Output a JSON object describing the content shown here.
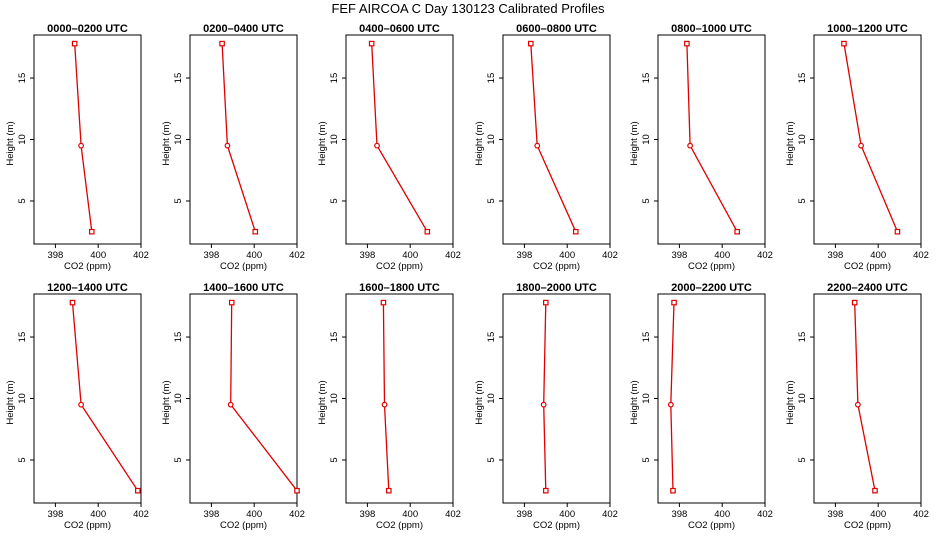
{
  "figure_title": "FEF AIRCOA C  Day 130123  Calibrated Profiles",
  "colors": {
    "series": "#e00000",
    "axis": "#000000",
    "background": "#ffffff"
  },
  "chart_data": [
    {
      "type": "line",
      "title": "0000–0200 UTC",
      "xlabel": "CO2 (ppm)",
      "ylabel": "Height (m)",
      "x": [
        398.9,
        399.2,
        399.7
      ],
      "y": [
        17.8,
        9.5,
        2.5
      ],
      "xlim": [
        397,
        402
      ],
      "ylim": [
        1.5,
        18.5
      ],
      "xticks": [
        "398",
        "400",
        "402"
      ],
      "yticks": [
        "5",
        "10",
        "15"
      ]
    },
    {
      "type": "line",
      "title": "0200–0400 UTC",
      "xlabel": "CO2 (ppm)",
      "ylabel": "Height (m)",
      "x": [
        398.5,
        398.75,
        400.05
      ],
      "y": [
        17.8,
        9.5,
        2.5
      ],
      "xlim": [
        397,
        402
      ],
      "ylim": [
        1.5,
        18.5
      ],
      "xticks": [
        "398",
        "400",
        "402"
      ],
      "yticks": [
        "5",
        "10",
        "15"
      ]
    },
    {
      "type": "line",
      "title": "0400–0600 UTC",
      "xlabel": "CO2 (ppm)",
      "ylabel": "Height (m)",
      "x": [
        398.2,
        398.45,
        400.8
      ],
      "y": [
        17.8,
        9.5,
        2.5
      ],
      "xlim": [
        397,
        402
      ],
      "ylim": [
        1.5,
        18.5
      ],
      "xticks": [
        "398",
        "400",
        "402"
      ],
      "yticks": [
        "5",
        "10",
        "15"
      ]
    },
    {
      "type": "line",
      "title": "0600–0800 UTC",
      "xlabel": "CO2 (ppm)",
      "ylabel": "Height (m)",
      "x": [
        398.3,
        398.6,
        400.4
      ],
      "y": [
        17.8,
        9.5,
        2.5
      ],
      "xlim": [
        397,
        402
      ],
      "ylim": [
        1.5,
        18.5
      ],
      "xticks": [
        "398",
        "400",
        "402"
      ],
      "yticks": [
        "5",
        "10",
        "15"
      ]
    },
    {
      "type": "line",
      "title": "0800–1000 UTC",
      "xlabel": "CO2 (ppm)",
      "ylabel": "Height (m)",
      "x": [
        398.35,
        398.5,
        400.7
      ],
      "y": [
        17.8,
        9.5,
        2.5
      ],
      "xlim": [
        397,
        402
      ],
      "ylim": [
        1.5,
        18.5
      ],
      "xticks": [
        "398",
        "400",
        "402"
      ],
      "yticks": [
        "5",
        "10",
        "15"
      ]
    },
    {
      "type": "line",
      "title": "1000–1200 UTC",
      "xlabel": "CO2 (ppm)",
      "ylabel": "Height (m)",
      "x": [
        398.4,
        399.2,
        400.9
      ],
      "y": [
        17.8,
        9.5,
        2.5
      ],
      "xlim": [
        397,
        402
      ],
      "ylim": [
        1.5,
        18.5
      ],
      "xticks": [
        "398",
        "400",
        "402"
      ],
      "yticks": [
        "5",
        "10",
        "15"
      ]
    },
    {
      "type": "line",
      "title": "1200–1400 UTC",
      "xlabel": "CO2 (ppm)",
      "ylabel": "Height (m)",
      "x": [
        398.8,
        399.2,
        401.85
      ],
      "y": [
        17.8,
        9.5,
        2.5
      ],
      "xlim": [
        397,
        402
      ],
      "ylim": [
        1.5,
        18.5
      ],
      "xticks": [
        "398",
        "400",
        "402"
      ],
      "yticks": [
        "5",
        "10",
        "15"
      ]
    },
    {
      "type": "line",
      "title": "1400–1600 UTC",
      "xlabel": "CO2 (ppm)",
      "ylabel": "Height (m)",
      "x": [
        398.95,
        398.9,
        402.0
      ],
      "y": [
        17.8,
        9.5,
        2.5
      ],
      "xlim": [
        397,
        402
      ],
      "ylim": [
        1.5,
        18.5
      ],
      "xticks": [
        "398",
        "400",
        "402"
      ],
      "yticks": [
        "5",
        "10",
        "15"
      ]
    },
    {
      "type": "line",
      "title": "1600–1800 UTC",
      "xlabel": "CO2 (ppm)",
      "ylabel": "Height (m)",
      "x": [
        398.75,
        398.8,
        399.0
      ],
      "y": [
        17.8,
        9.5,
        2.5
      ],
      "xlim": [
        397,
        402
      ],
      "ylim": [
        1.5,
        18.5
      ],
      "xticks": [
        "398",
        "400",
        "402"
      ],
      "yticks": [
        "5",
        "10",
        "15"
      ]
    },
    {
      "type": "line",
      "title": "1800–2000 UTC",
      "xlabel": "CO2 (ppm)",
      "ylabel": "Height (m)",
      "x": [
        399.0,
        398.9,
        399.0
      ],
      "y": [
        17.8,
        9.5,
        2.5
      ],
      "xlim": [
        397,
        402
      ],
      "ylim": [
        1.5,
        18.5
      ],
      "xticks": [
        "398",
        "400",
        "402"
      ],
      "yticks": [
        "5",
        "10",
        "15"
      ]
    },
    {
      "type": "line",
      "title": "2000–2200 UTC",
      "xlabel": "CO2 (ppm)",
      "ylabel": "Height (m)",
      "x": [
        397.75,
        397.6,
        397.7
      ],
      "y": [
        17.8,
        9.5,
        2.5
      ],
      "xlim": [
        397,
        402
      ],
      "ylim": [
        1.5,
        18.5
      ],
      "xticks": [
        "398",
        "400",
        "402"
      ],
      "yticks": [
        "5",
        "10",
        "15"
      ]
    },
    {
      "type": "line",
      "title": "2200–2400 UTC",
      "xlabel": "CO2 (ppm)",
      "ylabel": "Height (m)",
      "x": [
        398.9,
        399.05,
        399.85
      ],
      "y": [
        17.8,
        9.5,
        2.5
      ],
      "xlim": [
        397,
        402
      ],
      "ylim": [
        1.5,
        18.5
      ],
      "xticks": [
        "398",
        "400",
        "402"
      ],
      "yticks": [
        "5",
        "10",
        "15"
      ]
    }
  ]
}
